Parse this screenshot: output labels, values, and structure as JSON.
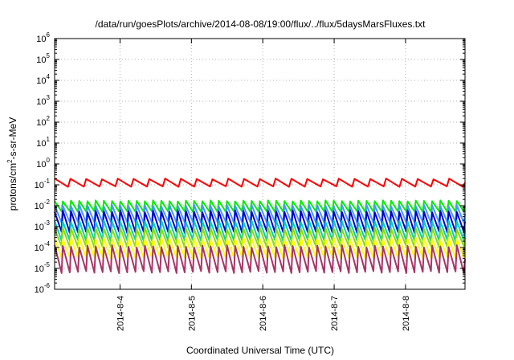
{
  "chart_data": {
    "type": "line",
    "title": "/data/run/goesPlots/archive/2014-08-08/19:00/flux/../flux/5daysMarsFluxes.txt",
    "xlabel": "Coordinated Universal Time (UTC)",
    "ylabel_base": "protons/cm",
    "ylabel_sup": "2",
    "ylabel_rest": "-s-sr-MeV",
    "x_range": [
      "2014-08-03 02:00",
      "2014-08-08 20:00"
    ],
    "x_ticks": [
      "2014-8-4",
      "2014-8-5",
      "2014-8-6",
      "2014-8-7",
      "2014-8-8"
    ],
    "y_scale": "log",
    "ylim": [
      1e-06,
      1000000.0
    ],
    "y_ticks": [
      {
        "base": "10",
        "exp": "6"
      },
      {
        "base": "10",
        "exp": "5"
      },
      {
        "base": "10",
        "exp": "4"
      },
      {
        "base": "10",
        "exp": "3"
      },
      {
        "base": "10",
        "exp": "2"
      },
      {
        "base": "10",
        "exp": "1"
      },
      {
        "base": "10",
        "exp": "0"
      },
      {
        "base": "10",
        "exp": "-1"
      },
      {
        "base": "10",
        "exp": "-2"
      },
      {
        "base": "10",
        "exp": "-3"
      },
      {
        "base": "10",
        "exp": "-4"
      },
      {
        "base": "10",
        "exp": "-5"
      },
      {
        "base": "10",
        "exp": "-6"
      }
    ],
    "grid": true,
    "legend": "none",
    "series": [
      {
        "color": "#ff0000",
        "high": 0.2,
        "low": 0.08,
        "sawtooth_count": 26
      },
      {
        "color": "#00ee00",
        "high": 0.018,
        "low": 0.005,
        "sawtooth_count": 50
      },
      {
        "color": "#4499ff",
        "high": 0.011,
        "low": 0.0015,
        "sawtooth_count": 50
      },
      {
        "color": "#0000cc",
        "high": 0.006,
        "low": 0.0005,
        "sawtooth_count": 50
      },
      {
        "color": "#00cccc",
        "high": 0.002,
        "low": 0.0002,
        "sawtooth_count": 50
      },
      {
        "color": "#88dd00",
        "high": 0.0009,
        "low": 0.0001,
        "sawtooth_count": 50
      },
      {
        "color": "#ffff00",
        "high": 0.0003,
        "low": 3e-05,
        "sawtooth_count": 50
      },
      {
        "color": "#aa3366",
        "high": 0.00013,
        "low": 6e-06,
        "sawtooth_count": 50
      }
    ]
  }
}
